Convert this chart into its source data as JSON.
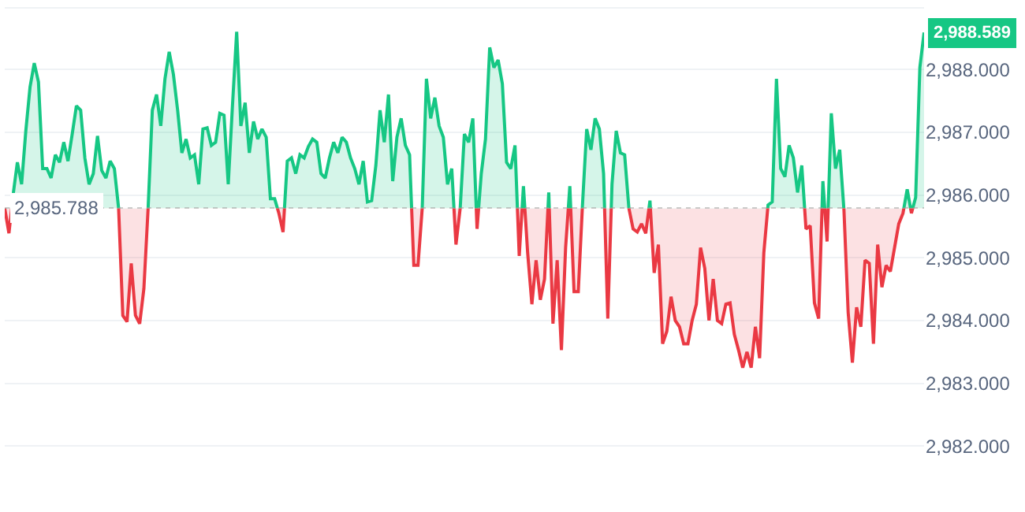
{
  "chart_data": {
    "type": "area",
    "categories": [
      null,
      null,
      null,
      null,
      null,
      null,
      null,
      null,
      null,
      null,
      null,
      null,
      null,
      null,
      null,
      null,
      null,
      null,
      null,
      null,
      null,
      null,
      null,
      null,
      null,
      null,
      null,
      null,
      null,
      null,
      null,
      null,
      null,
      null,
      null,
      null,
      null,
      null,
      null,
      null,
      null,
      null,
      null,
      null,
      null,
      null,
      null,
      null,
      null,
      null,
      null,
      null,
      null,
      null,
      null,
      null,
      null,
      null,
      null,
      null,
      null,
      null,
      null,
      null,
      null,
      null,
      null,
      null,
      null,
      null,
      null,
      null,
      null,
      null,
      null,
      null,
      null,
      null,
      null,
      null,
      null,
      null,
      null,
      null,
      null,
      null,
      null,
      null,
      null,
      null,
      null,
      null,
      null,
      null,
      null,
      null,
      null,
      null,
      null,
      null,
      null,
      null,
      null,
      null,
      null,
      null,
      null,
      null,
      null,
      null,
      null,
      null,
      null,
      null,
      null,
      null,
      null,
      null,
      null,
      null,
      null,
      null,
      null,
      null,
      null,
      null,
      null,
      null,
      null,
      null,
      null,
      null,
      null,
      null,
      null,
      null,
      null,
      null,
      null,
      null,
      null,
      null,
      null,
      null,
      null,
      null,
      null,
      null,
      null,
      null,
      null,
      null,
      null,
      null,
      null,
      null,
      null,
      null,
      null,
      null,
      null,
      null,
      null,
      null,
      null,
      null,
      null,
      null,
      null,
      null,
      null,
      null,
      null,
      null,
      null,
      null,
      null,
      null,
      null,
      null,
      null,
      null,
      null,
      null,
      null,
      null,
      null,
      null,
      null,
      null,
      null,
      null,
      null,
      null,
      null,
      null,
      null,
      null,
      null,
      null,
      null,
      null,
      null,
      null,
      null,
      null,
      null,
      null,
      null,
      null,
      null,
      null,
      null,
      null,
      null,
      null,
      null,
      null,
      null
    ],
    "series": [
      {
        "colors": [
          "#ea3943",
          "#ea3943",
          "#16c784",
          "#16c784",
          "#16c784",
          "#16c784",
          "#16c784",
          "#16c784",
          "#16c784",
          "#16c784",
          "#16c784",
          "#16c784",
          "#16c784",
          "#16c784",
          "#16c784",
          "#16c784",
          "#16c784",
          "#16c784",
          "#16c784",
          "#16c784",
          "#16c784",
          "#16c784",
          "#16c784",
          "#16c784",
          "#16c784",
          "#16c784",
          "#16c784",
          "#16c784",
          "#ea3943",
          "#ea3943",
          "#ea3943",
          "#ea3943",
          "#ea3943",
          "#ea3943",
          "#16c784",
          "#16c784",
          "#16c784",
          "#16c784",
          "#16c784",
          "#16c784",
          "#16c784",
          "#16c784",
          "#16c784",
          "#16c784",
          "#16c784",
          "#16c784",
          "#16c784",
          "#16c784",
          "#16c784",
          "#16c784",
          "#16c784",
          "#16c784",
          "#16c784",
          "#16c784",
          "#16c784",
          "#16c784",
          "#16c784",
          "#16c784",
          "#16c784",
          "#16c784",
          "#16c784",
          "#16c784",
          "#16c784",
          "#16c784",
          "#16c784",
          "#ea3943",
          "#ea3943",
          "#16c784",
          "#16c784",
          "#16c784",
          "#16c784",
          "#16c784",
          "#16c784",
          "#16c784",
          "#16c784",
          "#16c784",
          "#16c784",
          "#16c784",
          "#16c784",
          "#16c784",
          "#16c784",
          "#16c784",
          "#16c784",
          "#16c784",
          "#16c784",
          "#16c784",
          "#16c784",
          "#16c784",
          "#16c784",
          "#16c784",
          "#16c784",
          "#16c784",
          "#16c784",
          "#16c784",
          "#16c784",
          "#16c784",
          "#16c784",
          "#ea3943",
          "#ea3943",
          "#16c784",
          "#16c784",
          "#16c784",
          "#16c784",
          "#16c784",
          "#16c784",
          "#16c784",
          "#16c784",
          "#ea3943",
          "#16c784",
          "#16c784",
          "#16c784",
          "#16c784",
          "#ea3943",
          "#16c784",
          "#16c784",
          "#16c784",
          "#16c784",
          "#16c784",
          "#16c784",
          "#16c784",
          "#16c784",
          "#16c784",
          "#ea3943",
          "#16c784",
          "#ea3943",
          "#ea3943",
          "#ea3943",
          "#ea3943",
          "#ea3943",
          "#16c784",
          "#ea3943",
          "#ea3943",
          "#ea3943",
          "#ea3943",
          "#16c784",
          "#ea3943",
          "#ea3943",
          "#16c784",
          "#16c784",
          "#16c784",
          "#16c784",
          "#16c784",
          "#16c784",
          "#ea3943",
          "#16c784",
          "#16c784",
          "#16c784",
          "#16c784",
          "#16c784",
          "#ea3943",
          "#ea3943",
          "#ea3943",
          "#ea3943",
          "#16c784",
          "#ea3943",
          "#ea3943",
          "#ea3943",
          "#ea3943",
          "#ea3943",
          "#ea3943",
          "#ea3943",
          "#ea3943",
          "#ea3943",
          "#ea3943",
          "#ea3943",
          "#ea3943",
          "#ea3943",
          "#ea3943",
          "#ea3943",
          "#ea3943",
          "#ea3943",
          "#ea3943",
          "#ea3943",
          "#ea3943",
          "#ea3943",
          "#ea3943",
          "#ea3943",
          "#ea3943",
          "#ea3943",
          "#ea3943",
          "#ea3943",
          "#16c784",
          "#16c784",
          "#16c784",
          "#16c784",
          "#16c784",
          "#16c784",
          "#16c784",
          "#16c784",
          "#16c784",
          "#ea3943",
          "#ea3943",
          "#ea3943",
          "#ea3943",
          "#16c784",
          "#ea3943",
          "#16c784",
          "#16c784",
          "#16c784",
          "#ea3943",
          "#ea3943",
          "#ea3943",
          "#ea3943",
          "#ea3943",
          "#ea3943",
          "#ea3943",
          "#ea3943",
          "#ea3943",
          "#ea3943",
          "#ea3943",
          "#ea3943",
          "#ea3943",
          "#ea3943",
          "#ea3943",
          "#16c784",
          "#ea3943",
          "#16c784",
          "#16c784",
          "#16c784"
        ],
        "value_labels": [
          null,
          null,
          null,
          null,
          null,
          null,
          null,
          null,
          null,
          null,
          null,
          null,
          null,
          null,
          null,
          null,
          null,
          null,
          null,
          null,
          null,
          null,
          null,
          null,
          null,
          null,
          null,
          null,
          null,
          null,
          null,
          null,
          null,
          null,
          null,
          null,
          null,
          null,
          null,
          null,
          null,
          null,
          null,
          null,
          null,
          null,
          null,
          null,
          null,
          null,
          null,
          null,
          null,
          null,
          null,
          null,
          null,
          null,
          null,
          null,
          null,
          null,
          null,
          null,
          null,
          null,
          null,
          null,
          null,
          null,
          null,
          null,
          null,
          null,
          null,
          null,
          null,
          null,
          null,
          null,
          null,
          null,
          null,
          null,
          null,
          null,
          null,
          null,
          null,
          null,
          null,
          null,
          null,
          null,
          null,
          null,
          null,
          null,
          null,
          null,
          null,
          null,
          null,
          null,
          null,
          null,
          null,
          null,
          null,
          null,
          null,
          null,
          null,
          null,
          null,
          null,
          null,
          null,
          null,
          null,
          null,
          null,
          null,
          null,
          null,
          null,
          null,
          null,
          null,
          null,
          null,
          null,
          null,
          null,
          null,
          null,
          null,
          null,
          null,
          null,
          null,
          null,
          null,
          null,
          null,
          null,
          null,
          null,
          null,
          null,
          null,
          null,
          null,
          null,
          null,
          null,
          null,
          null,
          null,
          null,
          null,
          null,
          null,
          null,
          null,
          null,
          null,
          null,
          null,
          null,
          null,
          null,
          null,
          null,
          null,
          null,
          null,
          null,
          null,
          null,
          null,
          null,
          null,
          null,
          null,
          null,
          null,
          null,
          null,
          null,
          null,
          null,
          null,
          null,
          null,
          null,
          null,
          null,
          null,
          null,
          null,
          null,
          null,
          null,
          null,
          null,
          null,
          null,
          null,
          null,
          null,
          null,
          null,
          null,
          null,
          null,
          null,
          null,
          "2,988.589"
        ],
        "values": [
          2985.788,
          2985.39,
          2986.01,
          2986.52,
          2986.17,
          2987.02,
          2987.72,
          2988.1,
          2987.8,
          2986.42,
          2986.42,
          2986.27,
          2986.64,
          2986.52,
          2986.84,
          2986.54,
          2986.97,
          2987.42,
          2987.35,
          2986.59,
          2986.17,
          2986.34,
          2986.94,
          2986.39,
          2986.27,
          2986.54,
          2986.42,
          2985.79,
          2984.08,
          2983.98,
          2984.91,
          2984.08,
          2983.95,
          2984.51,
          2985.79,
          2987.35,
          2987.6,
          2987.1,
          2987.85,
          2988.28,
          2987.92,
          2987.35,
          2986.67,
          2986.89,
          2986.59,
          2986.64,
          2986.17,
          2987.05,
          2987.07,
          2986.79,
          2986.84,
          2987.3,
          2987.27,
          2986.17,
          2987.42,
          2988.6,
          2987.1,
          2987.47,
          2986.67,
          2987.17,
          2986.89,
          2987.05,
          2986.92,
          2985.94,
          2985.94,
          2985.71,
          2985.41,
          2986.54,
          2986.59,
          2986.34,
          2986.64,
          2986.59,
          2986.77,
          2986.89,
          2986.84,
          2986.34,
          2986.27,
          2986.59,
          2986.84,
          2986.67,
          2986.92,
          2986.84,
          2986.59,
          2986.42,
          2986.17,
          2986.54,
          2985.89,
          2985.91,
          2986.47,
          2987.35,
          2986.84,
          2987.6,
          2986.22,
          2986.92,
          2987.22,
          2986.79,
          2986.64,
          2984.88,
          2984.88,
          2985.79,
          2987.85,
          2987.22,
          2987.55,
          2987.1,
          2986.92,
          2986.17,
          2986.42,
          2985.21,
          2985.79,
          2986.97,
          2986.84,
          2987.22,
          2985.46,
          2986.34,
          2986.89,
          2988.35,
          2988.03,
          2988.15,
          2987.77,
          2986.52,
          2986.42,
          2986.79,
          2985.03,
          2986.14,
          2985.08,
          2984.26,
          2984.96,
          2984.33,
          2984.66,
          2986.04,
          2983.95,
          2984.96,
          2983.53,
          2985.16,
          2986.14,
          2984.46,
          2984.46,
          2985.84,
          2987.05,
          2986.72,
          2987.22,
          2987.05,
          2986.34,
          2984.03,
          2986.17,
          2987.02,
          2986.67,
          2986.64,
          2985.79,
          2985.46,
          2985.41,
          2985.54,
          2985.39,
          2985.91,
          2984.76,
          2985.21,
          2983.63,
          2983.83,
          2984.38,
          2984.0,
          2983.9,
          2983.63,
          2983.63,
          2984.0,
          2984.26,
          2985.16,
          2984.83,
          2984.0,
          2984.66,
          2984.0,
          2983.95,
          2984.26,
          2984.28,
          2983.78,
          2983.53,
          2983.25,
          2983.5,
          2983.25,
          2983.9,
          2983.4,
          2985.08,
          2985.84,
          2985.89,
          2987.85,
          2986.42,
          2986.29,
          2986.79,
          2986.59,
          2986.04,
          2986.47,
          2985.46,
          2985.51,
          2984.28,
          2984.03,
          2986.22,
          2985.26,
          2987.3,
          2986.42,
          2986.72,
          2985.76,
          2984.13,
          2983.33,
          2984.21,
          2983.9,
          2984.96,
          2984.91,
          2983.63,
          2985.21,
          2984.53,
          2984.88,
          2984.78,
          2985.16,
          2985.54,
          2985.71,
          2986.09,
          2985.71,
          2985.96,
          2988.03,
          2988.589
        ]
      }
    ],
    "ylim": [
      2980.95,
      2988.98
    ],
    "yticks": [
      {
        "value": 2982,
        "label": "2,982.000"
      },
      {
        "value": 2983,
        "label": "2,983.000"
      },
      {
        "value": 2984,
        "label": "2,984.000"
      },
      {
        "value": 2985,
        "label": "2,985.000"
      },
      {
        "value": 2986,
        "label": "2,986.000"
      },
      {
        "value": 2987,
        "label": "2,987.000"
      },
      {
        "value": 2988,
        "label": "2,988.000"
      }
    ],
    "tick_labels": "y",
    "grid": "y",
    "ref_lines": [
      {
        "axis": "y",
        "value": 2985.788,
        "label": "2,985.788",
        "color": "#999999",
        "line_style": "dotted"
      }
    ]
  }
}
